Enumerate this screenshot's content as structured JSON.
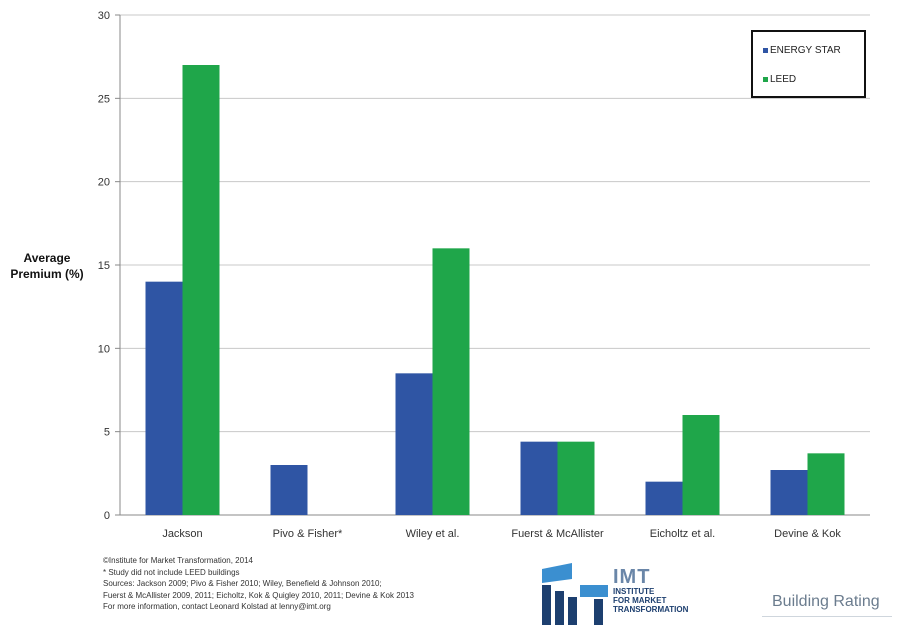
{
  "chart_data": {
    "type": "bar",
    "title": "",
    "xlabel": "",
    "ylabel": "Average Premium (%)",
    "ylabel_lines": [
      "Average",
      "Premium (%)"
    ],
    "ylim": [
      0,
      30
    ],
    "yticks": [
      0,
      5,
      10,
      15,
      20,
      25,
      30
    ],
    "grid": "horizontal",
    "legend_position": "top-right",
    "categories": [
      "Jackson",
      "Pivo & Fisher*",
      "Wiley et al.",
      "Fuerst & McAllister",
      "Eicholtz et al.",
      "Devine & Kok"
    ],
    "series": [
      {
        "name": "ENERGY STAR",
        "color": "#2f55a4",
        "values": [
          14,
          3,
          8.5,
          4.4,
          2,
          2.7
        ]
      },
      {
        "name": "LEED",
        "color": "#1fa64a",
        "values": [
          27,
          null,
          16,
          4.4,
          6,
          3.7
        ]
      }
    ]
  },
  "legend": {
    "energy_star": "ENERGY STAR",
    "leed": "LEED"
  },
  "footer": {
    "lines": [
      "©Institute for Market Transformation, 2014",
      "* Study did not include LEED buildings",
      "Sources: Jackson 2009; Pivo & Fisher 2010; Wiley, Benefield & Johnson 2010;",
      "Fuerst & McAllister 2009, 2011; Eicholtz, Kok & Quigley 2010, 2011; Devine & Kok 2013",
      "For more information, contact Leonard Kolstad at lenny@imt.org"
    ]
  },
  "logos": {
    "imt_abbr": "IMT",
    "imt_line1": "INSTITUTE",
    "imt_line2": "FOR MARKET",
    "imt_line3": "TRANSFORMATION",
    "building_rating": "Building Rating"
  }
}
